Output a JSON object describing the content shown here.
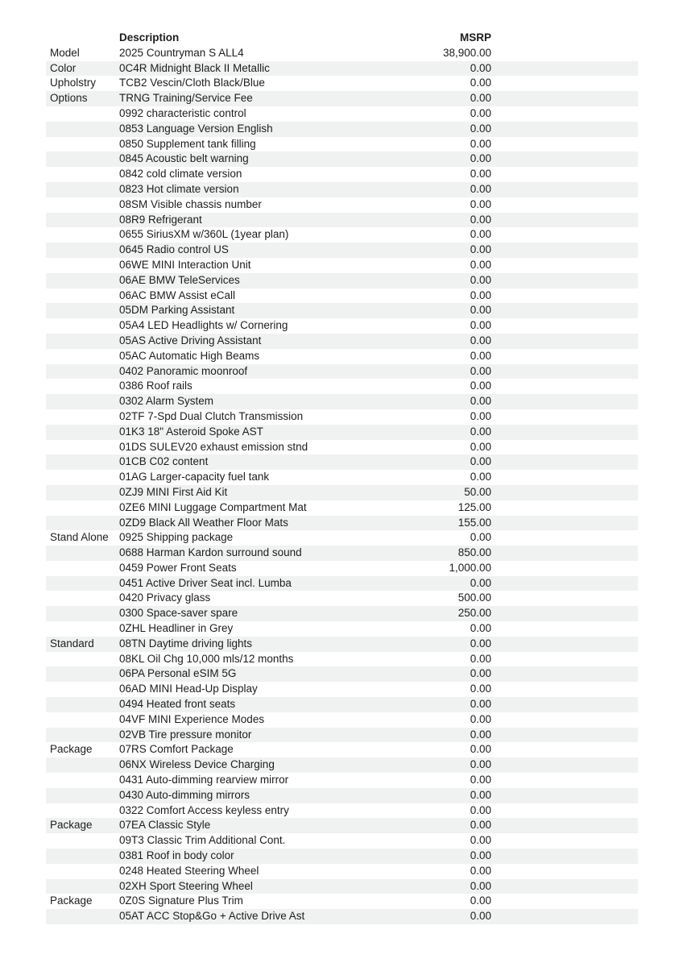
{
  "table": {
    "header": {
      "category": "",
      "description": "Description",
      "msrp": "MSRP"
    },
    "rows": [
      {
        "category": "Model",
        "description": "2025 Countryman S ALL4",
        "msrp": "38,900.00"
      },
      {
        "category": "Color",
        "description": "0C4R Midnight Black II Metallic",
        "msrp": "0.00"
      },
      {
        "category": "Upholstry",
        "description": "TCB2 Vescin/Cloth Black/Blue",
        "msrp": "0.00"
      },
      {
        "category": "Options",
        "description": "TRNG Training/Service Fee",
        "msrp": "0.00"
      },
      {
        "category": "",
        "description": "0992 characteristic control",
        "msrp": "0.00"
      },
      {
        "category": "",
        "description": "0853 Language Version English",
        "msrp": "0.00"
      },
      {
        "category": "",
        "description": "0850 Supplement tank filling",
        "msrp": "0.00"
      },
      {
        "category": "",
        "description": "0845 Acoustic belt warning",
        "msrp": "0.00"
      },
      {
        "category": "",
        "description": "0842 cold climate version",
        "msrp": "0.00"
      },
      {
        "category": "",
        "description": "0823 Hot climate version",
        "msrp": "0.00"
      },
      {
        "category": "",
        "description": "08SM Visible chassis number",
        "msrp": "0.00"
      },
      {
        "category": "",
        "description": "08R9 Refrigerant",
        "msrp": "0.00"
      },
      {
        "category": "",
        "description": "0655 SiriusXM w/360L (1year plan)",
        "msrp": "0.00"
      },
      {
        "category": "",
        "description": "0645 Radio control US",
        "msrp": "0.00"
      },
      {
        "category": "",
        "description": "06WE MINI Interaction Unit",
        "msrp": "0.00"
      },
      {
        "category": "",
        "description": "06AE BMW TeleServices",
        "msrp": "0.00"
      },
      {
        "category": "",
        "description": "06AC BMW Assist eCall",
        "msrp": "0.00"
      },
      {
        "category": "",
        "description": "05DM Parking Assistant",
        "msrp": "0.00"
      },
      {
        "category": "",
        "description": "05A4 LED Headlights w/ Cornering",
        "msrp": "0.00"
      },
      {
        "category": "",
        "description": "05AS Active Driving Assistant",
        "msrp": "0.00"
      },
      {
        "category": "",
        "description": "05AC Automatic High Beams",
        "msrp": "0.00"
      },
      {
        "category": "",
        "description": "0402 Panoramic moonroof",
        "msrp": "0.00"
      },
      {
        "category": "",
        "description": "0386 Roof rails",
        "msrp": "0.00"
      },
      {
        "category": "",
        "description": "0302 Alarm System",
        "msrp": "0.00"
      },
      {
        "category": "",
        "description": "02TF 7-Spd Dual Clutch Transmission",
        "msrp": "0.00"
      },
      {
        "category": "",
        "description": "01K3 18\" Asteroid Spoke AST",
        "msrp": "0.00"
      },
      {
        "category": "",
        "description": "01DS SULEV20 exhaust emission stnd",
        "msrp": "0.00"
      },
      {
        "category": "",
        "description": "01CB C02 content",
        "msrp": "0.00"
      },
      {
        "category": "",
        "description": "01AG Larger-capacity fuel tank",
        "msrp": "0.00"
      },
      {
        "category": "",
        "description": "0ZJ9 MINI First Aid Kit",
        "msrp": "50.00"
      },
      {
        "category": "",
        "description": "0ZE6 MINI Luggage Compartment Mat",
        "msrp": "125.00"
      },
      {
        "category": "",
        "description": "0ZD9 Black All Weather Floor Mats",
        "msrp": "155.00"
      },
      {
        "category": "Stand Alone",
        "description": "0925 Shipping package",
        "msrp": "0.00"
      },
      {
        "category": "",
        "description": "0688 Harman Kardon surround sound",
        "msrp": "850.00"
      },
      {
        "category": "",
        "description": "0459 Power Front Seats",
        "msrp": "1,000.00"
      },
      {
        "category": "",
        "description": "0451 Active Driver Seat incl. Lumba",
        "msrp": "0.00"
      },
      {
        "category": "",
        "description": "0420 Privacy glass",
        "msrp": "500.00"
      },
      {
        "category": "",
        "description": "0300 Space-saver spare",
        "msrp": "250.00"
      },
      {
        "category": "",
        "description": "0ZHL Headliner in Grey",
        "msrp": "0.00"
      },
      {
        "category": "Standard",
        "description": "08TN Daytime driving lights",
        "msrp": "0.00"
      },
      {
        "category": "",
        "description": "08KL Oil Chg 10,000 mls/12 months",
        "msrp": "0.00"
      },
      {
        "category": "",
        "description": "06PA Personal eSIM 5G",
        "msrp": "0.00"
      },
      {
        "category": "",
        "description": "06AD MINI Head-Up Display",
        "msrp": "0.00"
      },
      {
        "category": "",
        "description": "0494 Heated front seats",
        "msrp": "0.00"
      },
      {
        "category": "",
        "description": "04VF MINI Experience Modes",
        "msrp": "0.00"
      },
      {
        "category": "",
        "description": "02VB Tire pressure monitor",
        "msrp": "0.00"
      },
      {
        "category": "Package",
        "description": "07RS Comfort Package",
        "msrp": "0.00"
      },
      {
        "category": "",
        "description": "06NX Wireless Device Charging",
        "msrp": "0.00"
      },
      {
        "category": "",
        "description": "0431 Auto-dimming rearview mirror",
        "msrp": "0.00"
      },
      {
        "category": "",
        "description": "0430 Auto-dimming mirrors",
        "msrp": "0.00"
      },
      {
        "category": "",
        "description": "0322 Comfort Access keyless entry",
        "msrp": "0.00"
      },
      {
        "category": "Package",
        "description": "07EA Classic Style",
        "msrp": "0.00"
      },
      {
        "category": "",
        "description": "09T3 Classic Trim Additional Cont.",
        "msrp": "0.00"
      },
      {
        "category": "",
        "description": "0381 Roof in body color",
        "msrp": "0.00"
      },
      {
        "category": "",
        "description": "0248 Heated Steering Wheel",
        "msrp": "0.00"
      },
      {
        "category": "",
        "description": "02XH Sport Steering Wheel",
        "msrp": "0.00"
      },
      {
        "category": "Package",
        "description": "0Z0S Signature Plus Trim",
        "msrp": "0.00"
      },
      {
        "category": "",
        "description": "05AT ACC Stop&Go + Active Drive Ast",
        "msrp": "0.00"
      }
    ]
  }
}
